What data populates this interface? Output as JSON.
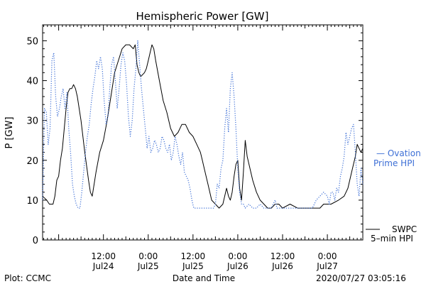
{
  "chart_data": {
    "type": "line",
    "title": "Hemispheric Power [GW]",
    "xlabel": "Date and Time",
    "ylabel": "P [GW]",
    "ylim": [
      0,
      54
    ],
    "yticks": [
      0,
      10,
      20,
      30,
      40,
      50
    ],
    "xlim": [
      -4.3,
      81.5
    ],
    "x_units": "hours since 2020-07-24 00:00",
    "xticks": [
      {
        "x": 12,
        "time": "12:00",
        "date": "Jul24"
      },
      {
        "x": 24,
        "time": "0:00",
        "date": "Jul25"
      },
      {
        "x": 36,
        "time": "12:00",
        "date": "Jul25"
      },
      {
        "x": 48,
        "time": "0:00",
        "date": "Jul26"
      },
      {
        "x": 60,
        "time": "12:00",
        "date": "Jul26"
      },
      {
        "x": 72,
        "time": "0:00",
        "date": "Jul27"
      }
    ],
    "footer_left": "Plot: CCMC",
    "footer_right": "2020/07/27 03:05:16",
    "legend": {
      "ovation_line1": "— Ovation",
      "ovation_line2": "Prime HPI",
      "swpc_line1": "SWPC",
      "swpc_line2": "5–min HPI"
    },
    "colors": {
      "ovation": "#3d6fd6",
      "swpc": "#000000"
    },
    "series": [
      {
        "name": "SWPC 5-min HPI",
        "style": "solid",
        "points": [
          [
            -4.3,
            11
          ],
          [
            -3.2,
            10
          ],
          [
            -2.5,
            9
          ],
          [
            -2.0,
            9
          ],
          [
            -1.5,
            9
          ],
          [
            -1.0,
            11
          ],
          [
            -0.5,
            15
          ],
          [
            0.0,
            16
          ],
          [
            0.5,
            20
          ],
          [
            1.0,
            23
          ],
          [
            1.5,
            28
          ],
          [
            2.0,
            33
          ],
          [
            2.5,
            37
          ],
          [
            3.0,
            38
          ],
          [
            3.5,
            38
          ],
          [
            4.0,
            39
          ],
          [
            4.5,
            38
          ],
          [
            5.0,
            36
          ],
          [
            6.0,
            30
          ],
          [
            7.0,
            22
          ],
          [
            8.0,
            15
          ],
          [
            8.5,
            12
          ],
          [
            9.0,
            11
          ],
          [
            10.0,
            17
          ],
          [
            11.0,
            22
          ],
          [
            12.0,
            25
          ],
          [
            13.0,
            30
          ],
          [
            14.0,
            36
          ],
          [
            15.0,
            42
          ],
          [
            16.0,
            45
          ],
          [
            17.0,
            48
          ],
          [
            18.0,
            49
          ],
          [
            19.0,
            49
          ],
          [
            20.0,
            48
          ],
          [
            20.5,
            49
          ],
          [
            21.0,
            44
          ],
          [
            21.5,
            42
          ],
          [
            22.0,
            41
          ],
          [
            23.0,
            42
          ],
          [
            23.5,
            43
          ],
          [
            24.0,
            45
          ],
          [
            24.5,
            47
          ],
          [
            25.0,
            49
          ],
          [
            25.5,
            48
          ],
          [
            26.0,
            45
          ],
          [
            27.0,
            40
          ],
          [
            28.0,
            35
          ],
          [
            29.0,
            32
          ],
          [
            30.0,
            28
          ],
          [
            31.0,
            26
          ],
          [
            32.0,
            27
          ],
          [
            33.0,
            29
          ],
          [
            34.0,
            29
          ],
          [
            35.0,
            27
          ],
          [
            36.0,
            26
          ],
          [
            37.0,
            24
          ],
          [
            38.0,
            22
          ],
          [
            38.5,
            20
          ],
          [
            39.0,
            18
          ],
          [
            40.0,
            14
          ],
          [
            41.0,
            10
          ],
          [
            42.0,
            9
          ],
          [
            43.0,
            8
          ],
          [
            44.0,
            9
          ],
          [
            44.5,
            11
          ],
          [
            45.0,
            13
          ],
          [
            45.5,
            11
          ],
          [
            46.0,
            10
          ],
          [
            46.5,
            12
          ],
          [
            47.0,
            16
          ],
          [
            47.5,
            19
          ],
          [
            48.0,
            20
          ],
          [
            48.5,
            13
          ],
          [
            49.0,
            10
          ],
          [
            49.5,
            17
          ],
          [
            50.0,
            25
          ],
          [
            50.5,
            21
          ],
          [
            51.0,
            19
          ],
          [
            52.0,
            15
          ],
          [
            53.0,
            12
          ],
          [
            54.0,
            10
          ],
          [
            55.0,
            9
          ],
          [
            56.0,
            8
          ],
          [
            57.0,
            8
          ],
          [
            58.0,
            9
          ],
          [
            59.0,
            9
          ],
          [
            60.0,
            8
          ],
          [
            62.0,
            9
          ],
          [
            64.0,
            8
          ],
          [
            66.0,
            8
          ],
          [
            68.0,
            8
          ],
          [
            70.0,
            8
          ],
          [
            71.0,
            9
          ],
          [
            73.0,
            9
          ],
          [
            75.0,
            10
          ],
          [
            76.5,
            11
          ],
          [
            77.5,
            13
          ],
          [
            78.5,
            17
          ],
          [
            79.5,
            21
          ],
          [
            80.0,
            24
          ],
          [
            80.5,
            23
          ],
          [
            81.0,
            22
          ],
          [
            81.5,
            23
          ]
        ]
      },
      {
        "name": "Ovation Prime HPI",
        "style": "dotted",
        "points": [
          [
            -4.3,
            10
          ],
          [
            -3.8,
            33
          ],
          [
            -3.3,
            32
          ],
          [
            -2.8,
            24
          ],
          [
            -2.3,
            28
          ],
          [
            -1.8,
            45
          ],
          [
            -1.3,
            47
          ],
          [
            -0.8,
            36
          ],
          [
            -0.3,
            31
          ],
          [
            0.2,
            33
          ],
          [
            0.7,
            36
          ],
          [
            1.2,
            38
          ],
          [
            1.7,
            33
          ],
          [
            2.2,
            37
          ],
          [
            2.7,
            28
          ],
          [
            3.2,
            22
          ],
          [
            3.7,
            14
          ],
          [
            4.2,
            11
          ],
          [
            4.7,
            9
          ],
          [
            5.2,
            8
          ],
          [
            5.7,
            8
          ],
          [
            6.2,
            12
          ],
          [
            6.7,
            17
          ],
          [
            7.2,
            22
          ],
          [
            7.7,
            26
          ],
          [
            8.2,
            29
          ],
          [
            8.7,
            34
          ],
          [
            9.2,
            38
          ],
          [
            9.7,
            41
          ],
          [
            10.2,
            45
          ],
          [
            10.7,
            43
          ],
          [
            11.2,
            46
          ],
          [
            11.7,
            43
          ],
          [
            12.2,
            35
          ],
          [
            12.7,
            29
          ],
          [
            13.2,
            31
          ],
          [
            13.7,
            38
          ],
          [
            14.2,
            44
          ],
          [
            14.7,
            46
          ],
          [
            15.2,
            40
          ],
          [
            15.7,
            33
          ],
          [
            16.2,
            38
          ],
          [
            16.7,
            44
          ],
          [
            17.2,
            47
          ],
          [
            17.7,
            45
          ],
          [
            18.2,
            39
          ],
          [
            18.7,
            31
          ],
          [
            19.2,
            26
          ],
          [
            19.7,
            30
          ],
          [
            20.2,
            38
          ],
          [
            20.7,
            43
          ],
          [
            21.2,
            50
          ],
          [
            21.7,
            44
          ],
          [
            22.2,
            38
          ],
          [
            22.7,
            33
          ],
          [
            23.2,
            28
          ],
          [
            23.7,
            23
          ],
          [
            24.2,
            26
          ],
          [
            24.7,
            22
          ],
          [
            25.2,
            23
          ],
          [
            25.7,
            25
          ],
          [
            26.2,
            24
          ],
          [
            26.7,
            22
          ],
          [
            27.2,
            23
          ],
          [
            27.7,
            26
          ],
          [
            28.2,
            25
          ],
          [
            28.7,
            23
          ],
          [
            29.2,
            22
          ],
          [
            29.7,
            24
          ],
          [
            30.2,
            20
          ],
          [
            30.7,
            22
          ],
          [
            31.2,
            26
          ],
          [
            31.7,
            24
          ],
          [
            32.2,
            21
          ],
          [
            32.7,
            19
          ],
          [
            33.2,
            22
          ],
          [
            33.7,
            17
          ],
          [
            34.2,
            16
          ],
          [
            34.7,
            15
          ],
          [
            35.2,
            13
          ],
          [
            35.7,
            10
          ],
          [
            36.2,
            8
          ],
          [
            37.0,
            8
          ],
          [
            38.0,
            8
          ],
          [
            39.0,
            8
          ],
          [
            40.0,
            8
          ],
          [
            41.0,
            8
          ],
          [
            41.5,
            8
          ],
          [
            42.0,
            9
          ],
          [
            42.5,
            14
          ],
          [
            43.0,
            13
          ],
          [
            43.5,
            18
          ],
          [
            44.0,
            20
          ],
          [
            44.5,
            28
          ],
          [
            45.0,
            33
          ],
          [
            45.5,
            27
          ],
          [
            46.0,
            38
          ],
          [
            46.5,
            42
          ],
          [
            47.0,
            36
          ],
          [
            47.5,
            28
          ],
          [
            48.0,
            18
          ],
          [
            48.5,
            12
          ],
          [
            49.0,
            9
          ],
          [
            49.5,
            9
          ],
          [
            50.0,
            8
          ],
          [
            51.0,
            9
          ],
          [
            52.0,
            8
          ],
          [
            53.0,
            8
          ],
          [
            54.0,
            9
          ],
          [
            55.0,
            8
          ],
          [
            56.0,
            8
          ],
          [
            57.0,
            8
          ],
          [
            58.0,
            10
          ],
          [
            58.5,
            8
          ],
          [
            59.0,
            8
          ],
          [
            60.0,
            8
          ],
          [
            61.0,
            8
          ],
          [
            62.0,
            8
          ],
          [
            63.0,
            8
          ],
          [
            64.0,
            8
          ],
          [
            65.0,
            8
          ],
          [
            66.0,
            8
          ],
          [
            67.0,
            8
          ],
          [
            68.0,
            8
          ],
          [
            68.5,
            9
          ],
          [
            69.0,
            10
          ],
          [
            70.0,
            11
          ],
          [
            71.0,
            12
          ],
          [
            72.0,
            11
          ],
          [
            72.5,
            9
          ],
          [
            73.0,
            12
          ],
          [
            73.5,
            12
          ],
          [
            74.0,
            10
          ],
          [
            74.5,
            13
          ],
          [
            75.0,
            12
          ],
          [
            75.5,
            16
          ],
          [
            76.0,
            18
          ],
          [
            76.5,
            21
          ],
          [
            77.0,
            27
          ],
          [
            77.5,
            24
          ],
          [
            78.0,
            26
          ],
          [
            78.5,
            28
          ],
          [
            79.0,
            29
          ],
          [
            79.5,
            22
          ],
          [
            80.0,
            14
          ],
          [
            80.5,
            11
          ],
          [
            81.0,
            18
          ],
          [
            81.5,
            14
          ]
        ]
      }
    ]
  }
}
